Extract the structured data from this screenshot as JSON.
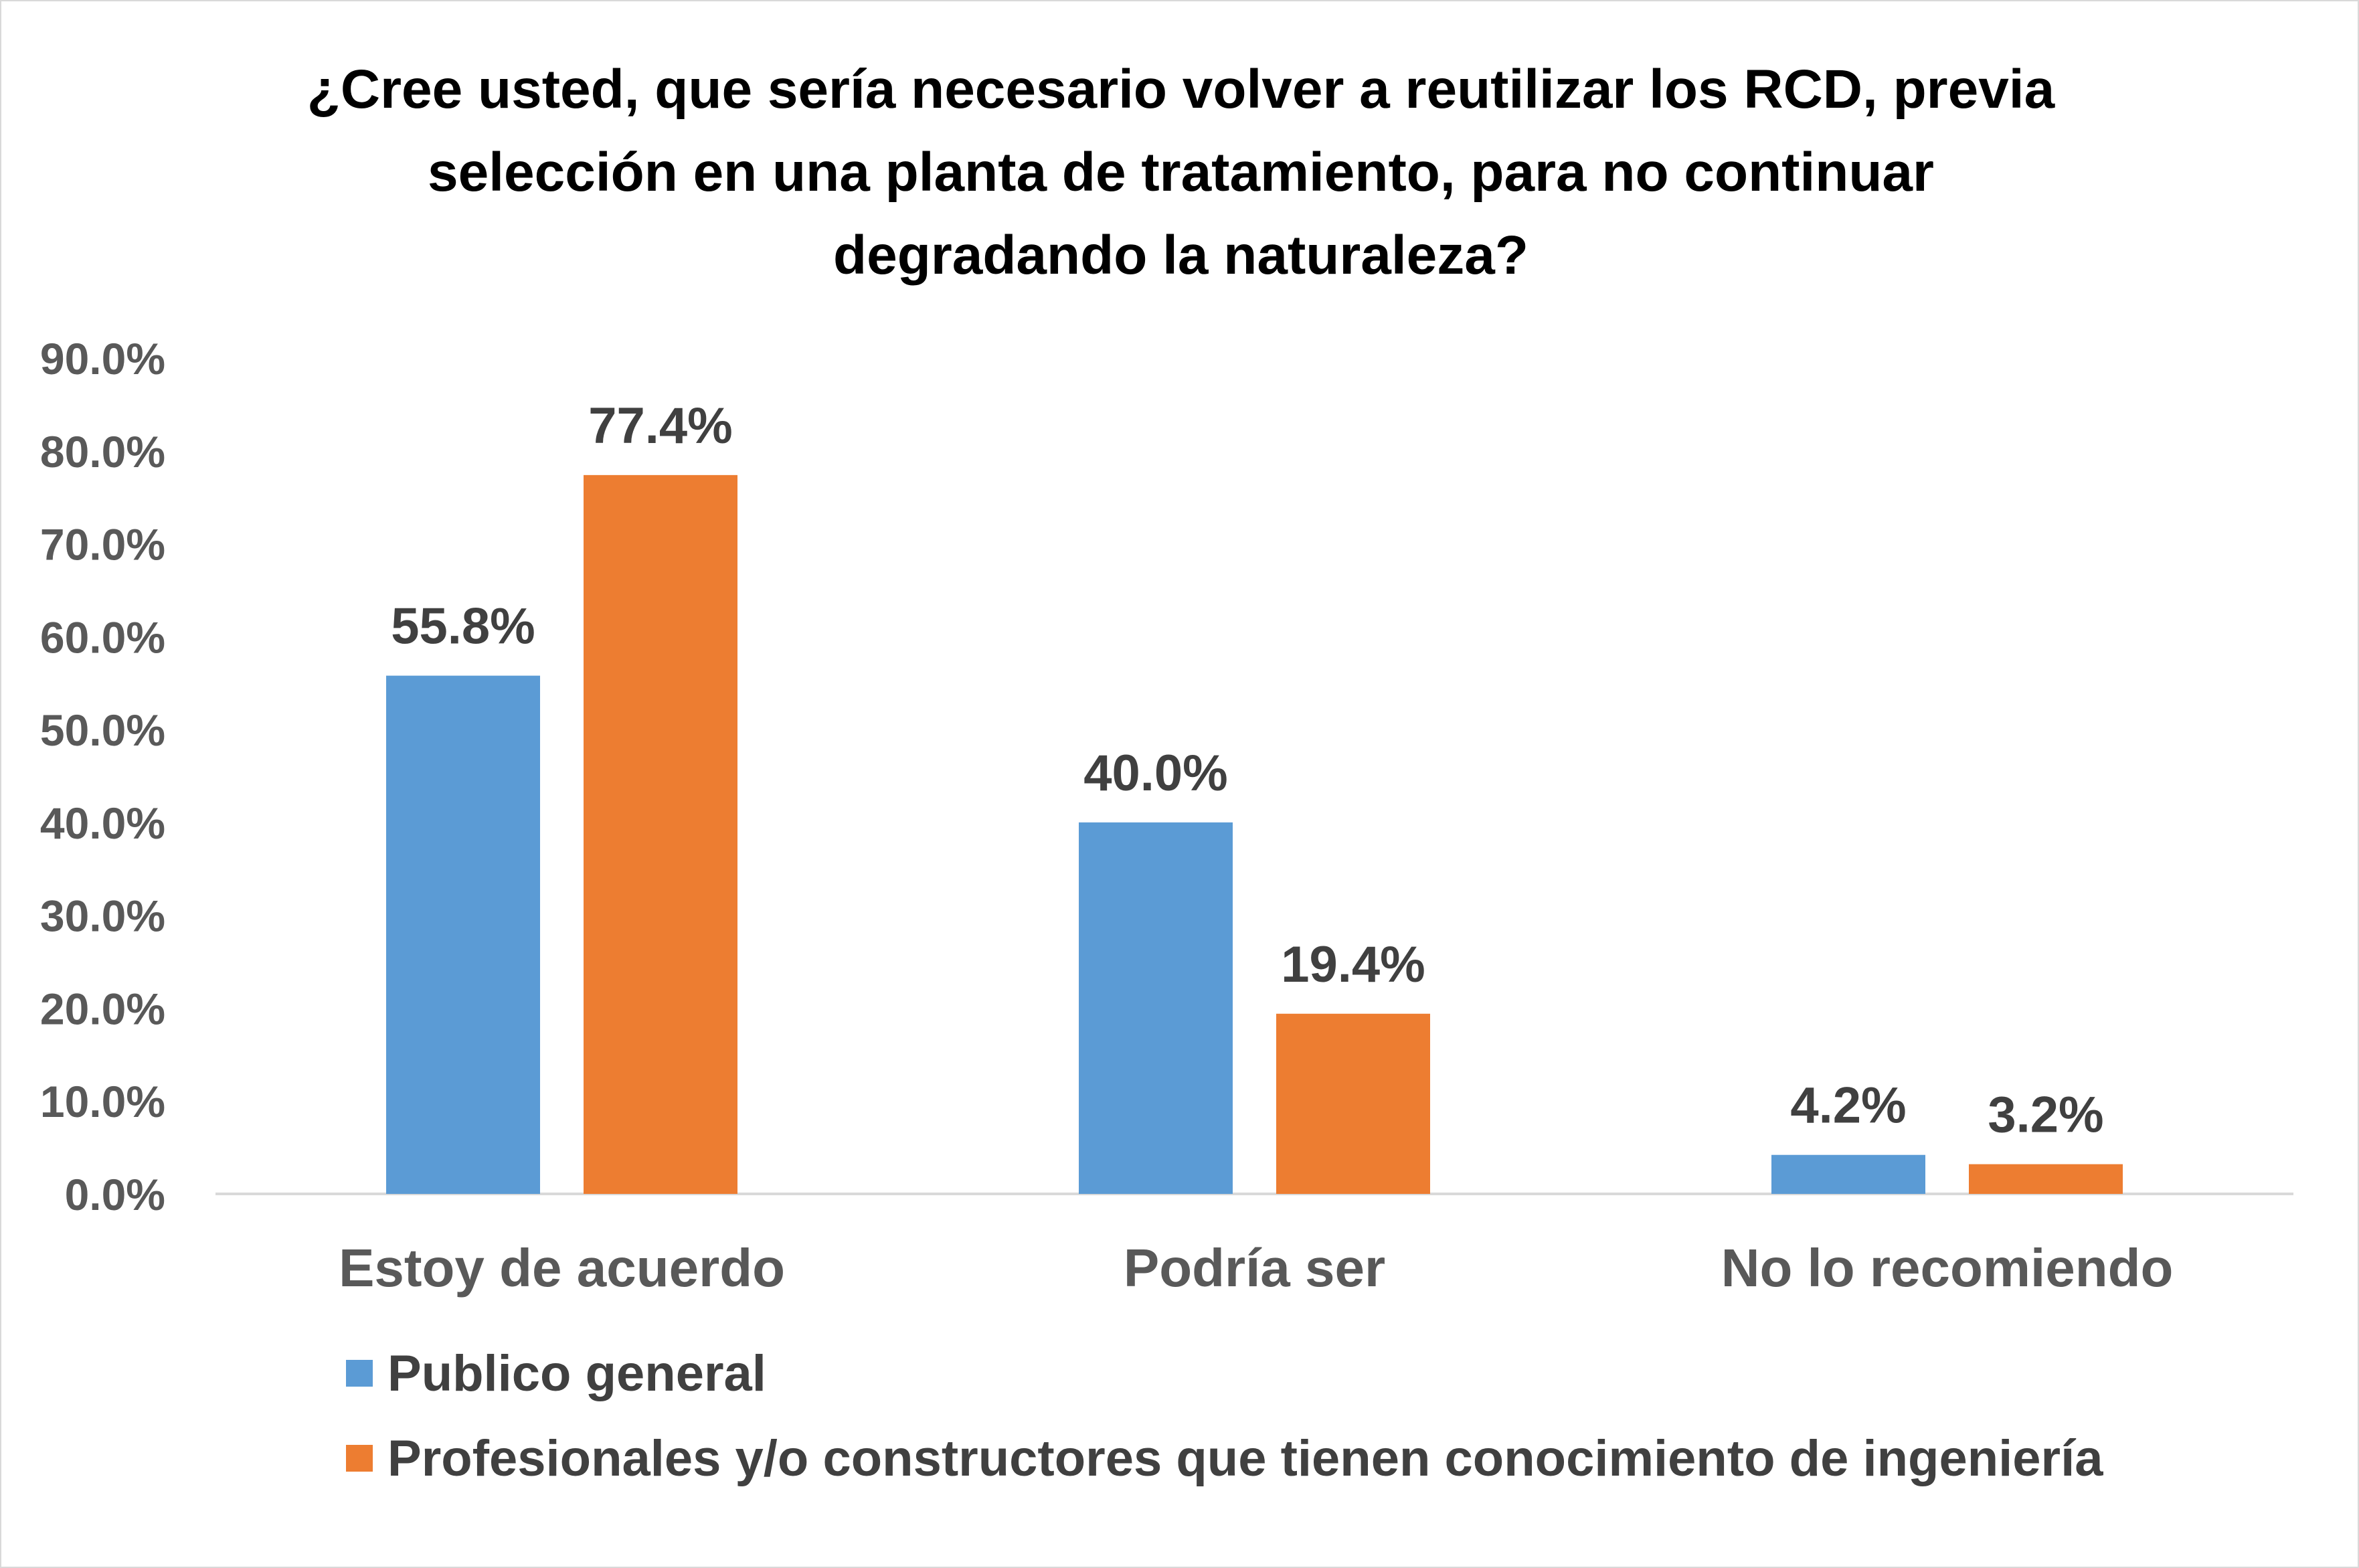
{
  "chart_data": {
    "type": "bar",
    "title_lines": [
      "¿Cree usted, que sería necesario volver a reutilizar los RCD, previa",
      "selección en una planta de tratamiento, para no continuar",
      "degradando la naturaleza?"
    ],
    "categories": [
      "Estoy de acuerdo",
      "Podría ser",
      "No lo recomiendo"
    ],
    "series": [
      {
        "name": "Publico general",
        "color": "#5b9bd5",
        "values": [
          55.8,
          40.0,
          4.2
        ],
        "labels": [
          "55.8%",
          "40.0%",
          "4.2%"
        ]
      },
      {
        "name": "Profesionales y/o constructores que tienen conocimiento de ingeniería",
        "color": "#ed7d31",
        "values": [
          77.4,
          19.4,
          3.2
        ],
        "labels": [
          "77.4%",
          "19.4%",
          "3.2%"
        ]
      }
    ],
    "y_ticks": [
      "0.0%",
      "10.0%",
      "20.0%",
      "30.0%",
      "40.0%",
      "50.0%",
      "60.0%",
      "70.0%",
      "80.0%",
      "90.0%"
    ],
    "ylim": [
      0,
      90
    ],
    "grid": false,
    "legend_position": "bottom-left",
    "xlabel": "",
    "ylabel": ""
  }
}
